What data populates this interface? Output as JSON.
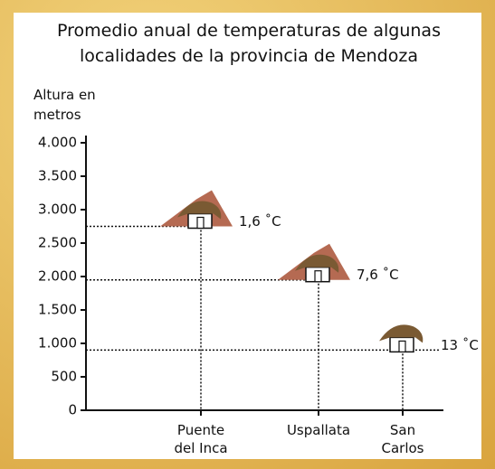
{
  "chart_data": {
    "type": "altitude-points",
    "title": "Promedio anual de temperaturas de algunas localidades de la provincia de Mendoza",
    "y_label": "Altura en metros",
    "categories": [
      "Puente del Inca",
      "Uspallata",
      "San Carlos"
    ],
    "values": [
      2750,
      1950,
      900
    ],
    "point_labels": [
      "1,6 ˚C",
      "7,6 ˚C",
      "13 ˚C"
    ],
    "ylim": [
      0,
      4000
    ],
    "yticks": [
      0,
      500,
      {
        "value": 1000,
        "label": "1.000"
      },
      {
        "value": 1500,
        "label": "1.500"
      },
      {
        "value": 2000,
        "label": "2.000"
      },
      {
        "value": 2500,
        "label": "2.500"
      },
      {
        "value": 3000,
        "label": "3.000"
      },
      {
        "value": 3500,
        "label": "3.500"
      },
      {
        "value": 4000,
        "label": "4.000"
      }
    ]
  }
}
